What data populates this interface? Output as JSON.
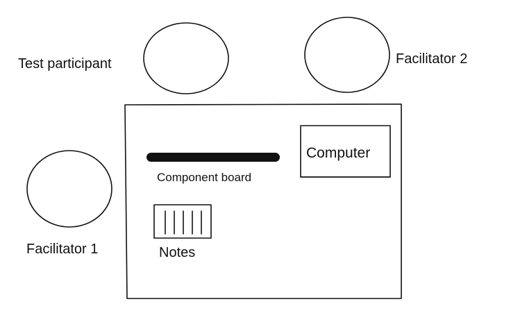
{
  "labels": {
    "test_participant": "Test participant",
    "facilitator_2": "Facilitator 2",
    "facilitator_1": "Facilitator 1",
    "computer": "Computer",
    "component_board": "Component board",
    "notes": "Notes"
  }
}
